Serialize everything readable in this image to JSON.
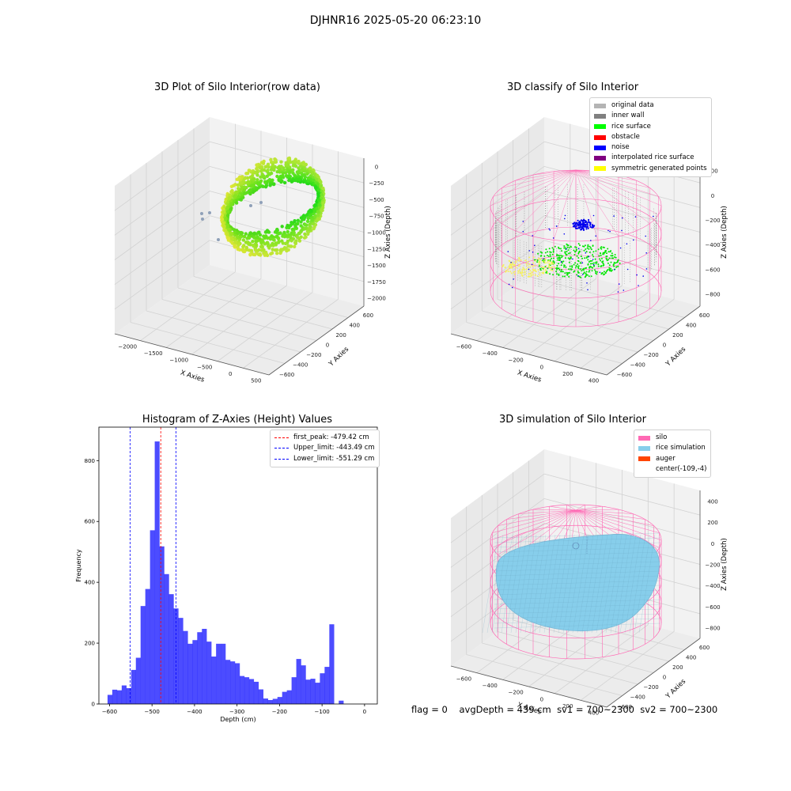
{
  "figure": {
    "title": "DJHNR16 2025-05-20 06:23:10",
    "status": {
      "flag": "flag = 0",
      "avg_depth": "avgDepth = 439 cm",
      "sv1": "sv1 = 700~2300",
      "sv2": "sv2 = 700~2300"
    }
  },
  "chart_data": [
    {
      "type": "scatter",
      "projection": "3d",
      "title": "3D Plot of Silo Interior(row data)",
      "xlabel": "X Axies",
      "ylabel": "Y Axies",
      "zlabel": "Z Axies (Depth)",
      "x_ticks": [
        "−2000",
        "−1500",
        "−1000",
        "−500",
        "0",
        "500"
      ],
      "y_ticks": [
        "−600",
        "−400",
        "−200",
        "0",
        "200",
        "400",
        "600"
      ],
      "z_ticks": [
        "0",
        "−250",
        "−500",
        "−750",
        "−1000",
        "−1250",
        "−1500",
        "−1750",
        "−2000"
      ],
      "xlim": [
        -2200,
        600
      ],
      "ylim": [
        -650,
        650
      ],
      "zlim": [
        -2100,
        100
      ],
      "colormap": "viridis",
      "grid": true
    },
    {
      "type": "scatter",
      "projection": "3d",
      "title": "3D classify of Silo Interior",
      "xlabel": "X Axies",
      "ylabel": "Y Axies",
      "zlabel": "Z Axies (Depth)",
      "x_ticks": [
        "−600",
        "−400",
        "−200",
        "0",
        "200",
        "400"
      ],
      "y_ticks": [
        "−600",
        "−400",
        "−200",
        "0",
        "200",
        "400",
        "600"
      ],
      "z_ticks": [
        "200",
        "0",
        "−200",
        "−400",
        "−600",
        "−800"
      ],
      "legend_position": "upper right",
      "series": [
        {
          "name": "original data",
          "color": "#b4b4b4"
        },
        {
          "name": "inner wall",
          "color": "#808080"
        },
        {
          "name": "rice surface",
          "color": "#00ff00"
        },
        {
          "name": "obstacle",
          "color": "#ff0000"
        },
        {
          "name": "noise",
          "color": "#0000ff"
        },
        {
          "name": "interpolated rice surface",
          "color": "#800080"
        },
        {
          "name": "symmetric generated points",
          "color": "#ffff00"
        }
      ],
      "wireframe_color": "#ff69b4",
      "grid": true
    },
    {
      "type": "bar",
      "title": "Histogram of Z-Axies (Height) Values",
      "xlabel": "Depth (cm)",
      "ylabel": "Frequency",
      "xlim": [
        -625,
        30
      ],
      "ylim": [
        0,
        910
      ],
      "x_ticks": [
        -600,
        -500,
        -400,
        -300,
        -200,
        -100,
        0
      ],
      "y_ticks": [
        0,
        200,
        400,
        600,
        800
      ],
      "bar_color": "#0000ff",
      "bin_width": 11.1,
      "bin_start": -604.6,
      "values": [
        30,
        47,
        45,
        61,
        52,
        112,
        152,
        322,
        378,
        571,
        863,
        518,
        427,
        361,
        314,
        283,
        240,
        198,
        210,
        236,
        247,
        205,
        156,
        198,
        198,
        145,
        140,
        134,
        92,
        88,
        82,
        73,
        48,
        18,
        13,
        17,
        23,
        40,
        45,
        88,
        148,
        127,
        80,
        83,
        70,
        101,
        122,
        262,
        0,
        11
      ],
      "legend_position": "upper right",
      "lines": [
        {
          "name": "first_peak: -479.42 cm",
          "x": -479.42,
          "color": "#ff0000"
        },
        {
          "name": "Upper_limit: -443.49 cm",
          "x": -443.49,
          "color": "#0000ff"
        },
        {
          "name": "Lower_limit: -551.29 cm",
          "x": -551.29,
          "color": "#0000ff"
        }
      ],
      "grid": false
    },
    {
      "type": "surface",
      "projection": "3d",
      "title": "3D simulation of Silo Interior",
      "xlabel": "X Axies",
      "ylabel": "Y Axies",
      "zlabel": "Z Axies (Depth)",
      "x_ticks": [
        "−600",
        "−400",
        "−200",
        "0",
        "200",
        "400"
      ],
      "y_ticks": [
        "−600",
        "−400",
        "−200",
        "0",
        "200",
        "400",
        "600"
      ],
      "z_ticks": [
        "400",
        "200",
        "0",
        "−200",
        "−400",
        "−600",
        "−800"
      ],
      "legend_position": "upper right",
      "series": [
        {
          "name": "silo",
          "color": "#ff69b4"
        },
        {
          "name": "rice simulation",
          "color": "#87ceeb"
        },
        {
          "name": "auger",
          "color": "#ff4500"
        },
        {
          "name": "center(-109,-4)",
          "color": "none"
        }
      ],
      "grid": true
    }
  ]
}
